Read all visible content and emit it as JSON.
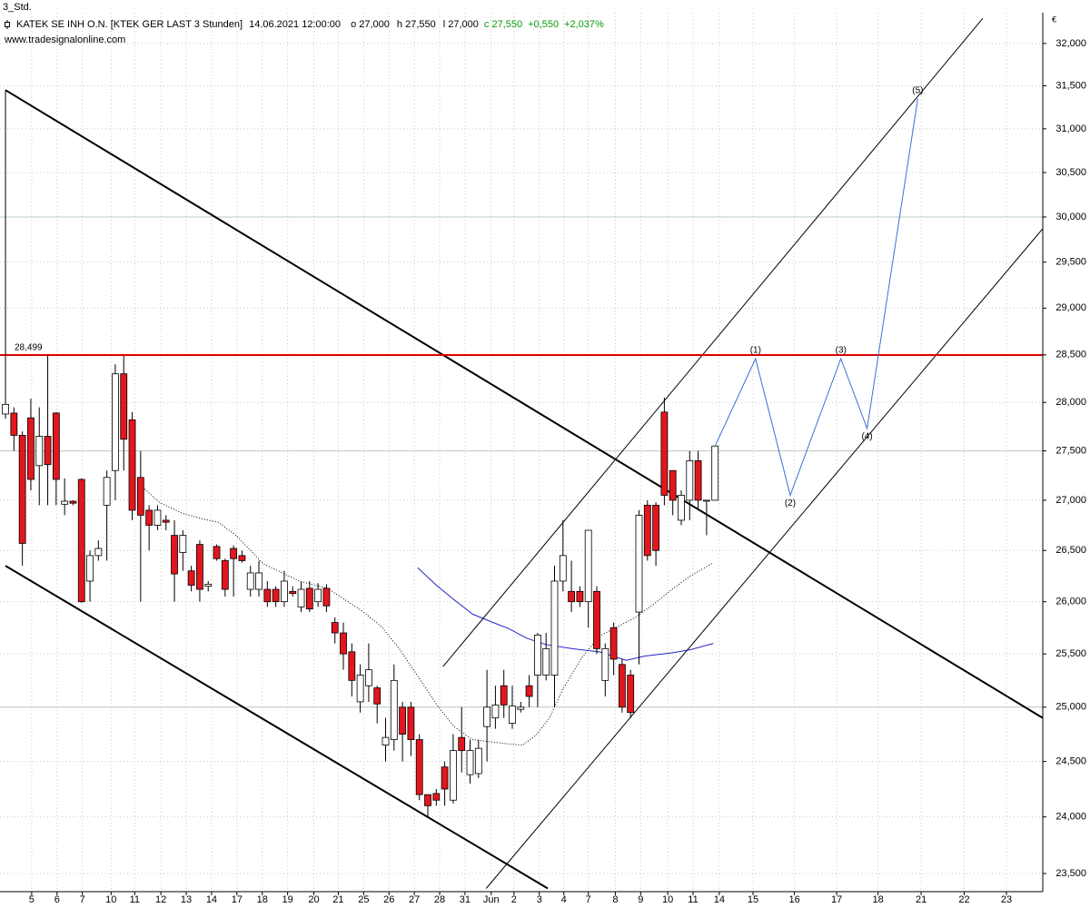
{
  "chart_data": {
    "type": "candlestick",
    "timeframe": "3_Std.",
    "symbol": "KATEK SE  INH O.N. [KTEK GER LAST 3 Stunden]",
    "datetime": "14.06.2021 12:00:00",
    "quote": [
      "o 27,000",
      "h 27,550",
      "l 27,000"
    ],
    "close_quote": [
      "c 27,550",
      "+0,550",
      "+2,037%"
    ],
    "quote_color": "#000000",
    "close_quote_color": "#0a9a0a",
    "source": "www.tradesignalonline.com",
    "currency": "€",
    "log_scale": true,
    "grid": true,
    "ylim": [
      23342,
      32368
    ],
    "yticks": [
      {
        "value": 23500,
        "label": "23,500"
      },
      {
        "value": 24000,
        "label": "24,000"
      },
      {
        "value": 24500,
        "label": "24,500"
      },
      {
        "value": 25000,
        "label": "25,000"
      },
      {
        "value": 25500,
        "label": "25,500"
      },
      {
        "value": 26000,
        "label": "26,000"
      },
      {
        "value": 26500,
        "label": "26,500"
      },
      {
        "value": 27000,
        "label": "27,000"
      },
      {
        "value": 27500,
        "label": "27,500"
      },
      {
        "value": 28000,
        "label": "28,000"
      },
      {
        "value": 28500,
        "label": "28,500"
      },
      {
        "value": 29000,
        "label": "29,000"
      },
      {
        "value": 29500,
        "label": "29,500"
      },
      {
        "value": 30000,
        "label": "30,000"
      },
      {
        "value": 30500,
        "label": "30,500"
      },
      {
        "value": 31000,
        "label": "31,000"
      },
      {
        "value": 31500,
        "label": "31,500"
      },
      {
        "value": 32000,
        "label": "32,000"
      }
    ],
    "major_yticks": [
      25000,
      27500,
      30000
    ],
    "xlim": [
      -0.65,
      122.8
    ],
    "xticks": [
      {
        "value": 3.1,
        "label": "5"
      },
      {
        "value": 6.1,
        "label": "6"
      },
      {
        "value": 9.1,
        "label": "7"
      },
      {
        "value": 12.5,
        "label": "10"
      },
      {
        "value": 15.3,
        "label": "11"
      },
      {
        "value": 18.4,
        "label": "12"
      },
      {
        "value": 21.4,
        "label": "13"
      },
      {
        "value": 24.4,
        "label": "14"
      },
      {
        "value": 27.4,
        "label": "17"
      },
      {
        "value": 30.4,
        "label": "18"
      },
      {
        "value": 33.4,
        "label": "19"
      },
      {
        "value": 36.5,
        "label": "20"
      },
      {
        "value": 39.4,
        "label": "21"
      },
      {
        "value": 42.4,
        "label": "25"
      },
      {
        "value": 45.4,
        "label": "26"
      },
      {
        "value": 48.4,
        "label": "27"
      },
      {
        "value": 51.4,
        "label": "28"
      },
      {
        "value": 54.4,
        "label": "31"
      },
      {
        "value": 57.5,
        "label": "Jun"
      },
      {
        "value": 60.2,
        "label": "2"
      },
      {
        "value": 63.2,
        "label": "3"
      },
      {
        "value": 66.1,
        "label": "4"
      },
      {
        "value": 69,
        "label": "7"
      },
      {
        "value": 72.2,
        "label": "8"
      },
      {
        "value": 75.2,
        "label": "9"
      },
      {
        "value": 78.4,
        "label": "10"
      },
      {
        "value": 81.4,
        "label": "11"
      },
      {
        "value": 84.5,
        "label": "14"
      },
      {
        "value": 88.5,
        "label": "15"
      },
      {
        "value": 93.4,
        "label": "16"
      },
      {
        "value": 98.4,
        "label": "17"
      },
      {
        "value": 103.3,
        "label": "18"
      },
      {
        "value": 108.4,
        "label": "21"
      },
      {
        "value": 113.5,
        "label": "22"
      },
      {
        "value": 118.5,
        "label": "23"
      }
    ],
    "up_color": "#ffffff",
    "down_color": "#e3161d",
    "x": [
      0,
      1,
      2,
      3,
      4,
      5,
      6,
      7,
      8,
      9,
      10,
      11,
      12,
      13,
      14,
      15,
      16,
      17,
      18,
      19,
      20,
      21,
      22,
      23,
      24,
      25,
      26,
      27,
      28,
      29,
      30,
      31,
      32,
      33,
      34,
      35,
      36,
      37,
      38,
      39,
      40,
      41,
      42,
      43,
      44,
      45,
      46,
      47,
      48,
      49,
      50,
      51,
      52,
      53,
      54,
      55,
      56,
      57,
      58,
      59,
      60,
      61,
      62,
      63,
      64,
      65,
      66,
      67,
      68,
      69,
      70,
      71,
      72,
      73,
      74,
      75,
      76,
      77,
      78,
      79,
      80,
      81,
      82,
      83,
      84
    ],
    "open": [
      27880,
      27890,
      27660,
      27840,
      27350,
      27650,
      27890,
      26960,
      26990,
      27210,
      26200,
      26450,
      26950,
      27300,
      28300,
      27820,
      27230,
      26900,
      26750,
      26800,
      26650,
      26480,
      26300,
      26560,
      26150,
      26540,
      26400,
      26520,
      26450,
      26120,
      26120,
      26120,
      26120,
      26000,
      26100,
      25950,
      26130,
      26000,
      26130,
      25800,
      25700,
      25520,
      25050,
      25200,
      25180,
      24650,
      24700,
      25000,
      25000,
      24700,
      24200,
      24210,
      24450,
      24150,
      24720,
      24380,
      24390,
      24820,
      24900,
      25200,
      24850,
      24980,
      25200,
      25300,
      25300,
      25300,
      26200,
      26100,
      26100,
      26000,
      26100,
      25250,
      25750,
      25400,
      25300,
      25900,
      26950,
      26950,
      27900,
      27300,
      26800,
      27000,
      27400,
      27000,
      27000
    ],
    "high": [
      31450,
      27950,
      27700,
      28040,
      27950,
      28499,
      27900,
      27220,
      27000,
      27220,
      26500,
      26600,
      27300,
      28400,
      28490,
      27900,
      27500,
      26950,
      26950,
      26850,
      26800,
      26700,
      26350,
      26600,
      26200,
      26560,
      26420,
      26550,
      26500,
      26350,
      26400,
      26200,
      26150,
      26300,
      26150,
      26200,
      26200,
      26180,
      26170,
      25850,
      25800,
      25600,
      25400,
      25600,
      25200,
      24900,
      25400,
      25050,
      25050,
      24750,
      24200,
      24250,
      24500,
      24750,
      25000,
      24700,
      24700,
      25350,
      25200,
      25350,
      25200,
      25050,
      25300,
      25700,
      25700,
      26350,
      26800,
      26400,
      26150,
      26700,
      26150,
      25600,
      25800,
      25450,
      25350,
      26900,
      27000,
      26980,
      28050,
      27300,
      27100,
      27500,
      27500,
      27000,
      27550
    ],
    "low": [
      27830,
      27500,
      26350,
      27100,
      26950,
      26950,
      26950,
      26850,
      26950,
      25990,
      26000,
      26400,
      26400,
      27000,
      27300,
      26800,
      26000,
      26500,
      26700,
      26700,
      26000,
      26300,
      26100,
      26000,
      26100,
      26400,
      26050,
      26050,
      26380,
      26050,
      26050,
      25950,
      25950,
      25950,
      26050,
      25900,
      25900,
      25950,
      25900,
      25600,
      25350,
      25100,
      24950,
      25050,
      24850,
      24500,
      24600,
      24500,
      24550,
      24150,
      24000,
      24100,
      24100,
      24120,
      24400,
      24300,
      24350,
      24500,
      24800,
      24900,
      24800,
      24950,
      25000,
      25000,
      25250,
      25000,
      26100,
      25900,
      25950,
      25750,
      25500,
      25100,
      25300,
      24950,
      24900,
      25400,
      26400,
      26350,
      26950,
      26850,
      26750,
      26800,
      26900,
      26650,
      27000
    ],
    "close": [
      27980,
      27660,
      26570,
      27210,
      27650,
      27360,
      27210,
      26990,
      26970,
      26000,
      26450,
      26520,
      27230,
      28300,
      27620,
      26900,
      26850,
      26750,
      26900,
      26780,
      26270,
      26650,
      26160,
      26120,
      26170,
      26420,
      26120,
      26420,
      26400,
      26280,
      26280,
      26000,
      26000,
      26200,
      26080,
      26120,
      25930,
      26120,
      25960,
      25700,
      25500,
      25250,
      25300,
      25350,
      25030,
      24720,
      25250,
      24750,
      24700,
      24200,
      24100,
      24150,
      24250,
      24600,
      24600,
      24600,
      24620,
      25000,
      25020,
      25020,
      25010,
      25000,
      25100,
      25680,
      25550,
      26200,
      26450,
      26000,
      26000,
      26700,
      25550,
      25550,
      25450,
      25000,
      24950,
      26850,
      26450,
      26500,
      27050,
      27000,
      27050,
      27400,
      27000,
      27000,
      27550
    ],
    "indicators": [
      {
        "color": "#000000",
        "dotted": true,
        "x": [
          16,
          18.2,
          20.9,
          23.5,
          25.2,
          27.3,
          30.5,
          34.8,
          38.1,
          40.2,
          42.4,
          44.5,
          46.7,
          48.8,
          51,
          53.1,
          55.3,
          57.4,
          59.6,
          61.2,
          62.8,
          64.4,
          66,
          68.2,
          70.3,
          72.5,
          74.6,
          76.8,
          78.9,
          81.1,
          83.8
        ],
        "y": [
          27150,
          26980,
          26870,
          26810,
          26780,
          26650,
          26370,
          26200,
          26130,
          26020,
          25900,
          25760,
          25540,
          25290,
          25030,
          24820,
          24700,
          24680,
          24660,
          24650,
          24740,
          24900,
          25170,
          25460,
          25670,
          25760,
          25850,
          25980,
          26120,
          26250,
          26380
        ]
      },
      {
        "color": "#2424c8",
        "dotted": false,
        "x": [
          48.8,
          51,
          53.1,
          55.3,
          57.4,
          59.6,
          61.7,
          63.9,
          67.1,
          70.3,
          73.5,
          75.7,
          78.9,
          81.1,
          83.8
        ],
        "y": [
          26330,
          26160,
          26020,
          25880,
          25810,
          25740,
          25650,
          25590,
          25550,
          25520,
          25440,
          25480,
          25510,
          25540,
          25600
        ]
      }
    ],
    "hline": {
      "value": 28499,
      "label": "28,499",
      "color": "#e00000"
    },
    "trendlines": [
      {
        "x": [
          0,
          122.8
        ],
        "y": [
          31450,
          24900
        ],
        "width": 2
      },
      {
        "x": [
          0,
          64.2
        ],
        "y": [
          26350,
          23370
        ],
        "width": 2
      },
      {
        "x": [
          56.9,
          122.8
        ],
        "y": [
          23370,
          29870
        ],
        "width": 1
      },
      {
        "x": [
          51.8,
          115.7
        ],
        "y": [
          25380,
          32300
        ],
        "width": 1
      }
    ],
    "projection": {
      "color": "#3a6fd8",
      "x": [
        84,
        88.8,
        92.9,
        98.9,
        102,
        108
      ],
      "y": [
        27550,
        28460,
        27050,
        28460,
        27730,
        31350
      ],
      "labels": [
        null,
        "(1)",
        "(2)",
        "(3)",
        "(4)",
        "(5)"
      ]
    }
  }
}
